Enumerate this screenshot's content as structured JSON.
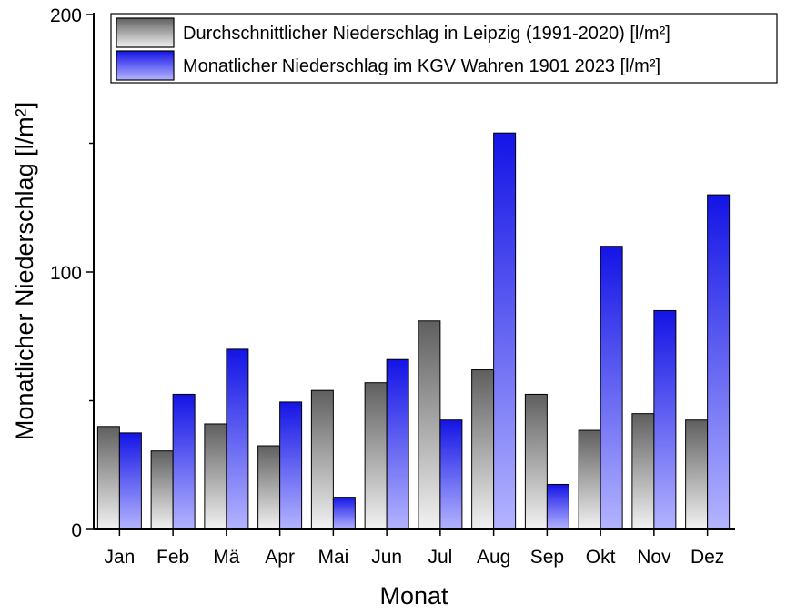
{
  "chart_data": {
    "type": "bar",
    "title": "",
    "xlabel": "Monat",
    "ylabel": "Monatlicher Niederschlag [l/m²]",
    "ylim": [
      0,
      200
    ],
    "yticks": [
      0,
      100,
      200
    ],
    "grid": false,
    "legend_position": "top-right",
    "categories": [
      "Jan",
      "Feb",
      "Mä",
      "Apr",
      "Mai",
      "Jun",
      "Jul",
      "Aug",
      "Sep",
      "Okt",
      "Nov",
      "Dez"
    ],
    "series": [
      {
        "name": "Durchschnittlicher Niederschlag in Leipzig (1991-2020) [l/m²]",
        "values": [
          40,
          30.5,
          41,
          32.5,
          54,
          57,
          81,
          62,
          52.5,
          38.5,
          45,
          42.5
        ],
        "color_top": "#5f5f5f",
        "color_bottom": "#f2f2f2"
      },
      {
        "name": "Monatlicher Niederschlag im KGV Wahren 1901 2023 [l/m²]",
        "values": [
          37.5,
          52.5,
          70,
          49.5,
          12.5,
          66,
          42.5,
          154,
          17.5,
          110,
          85,
          130
        ],
        "color_top": "#1414e6",
        "color_bottom": "#b4b4ff"
      }
    ]
  }
}
